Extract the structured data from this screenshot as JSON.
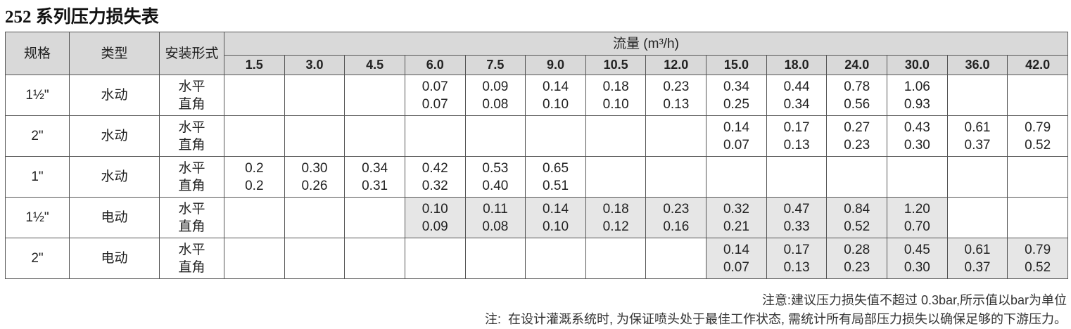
{
  "title": "252 系列压力损失表",
  "table": {
    "headers": {
      "size": "规格",
      "type": "类型",
      "mount": "安装形式",
      "flow": "流量 (m³/h)"
    },
    "flows": [
      "1.5",
      "3.0",
      "4.5",
      "6.0",
      "7.5",
      "9.0",
      "10.5",
      "12.0",
      "15.0",
      "18.0",
      "24.0",
      "30.0",
      "36.0",
      "42.0"
    ],
    "rows": [
      {
        "size": "1½\"",
        "type": "水动",
        "mount": [
          "水平",
          "直角"
        ],
        "shaded": false,
        "values": [
          null,
          null,
          null,
          [
            "0.07",
            "0.07"
          ],
          [
            "0.09",
            "0.08"
          ],
          [
            "0.14",
            "0.10"
          ],
          [
            "0.18",
            "0.10"
          ],
          [
            "0.23",
            "0.13"
          ],
          [
            "0.34",
            "0.25"
          ],
          [
            "0.44",
            "0.34"
          ],
          [
            "0.78",
            "0.56"
          ],
          [
            "1.06",
            "0.93"
          ],
          null,
          null
        ]
      },
      {
        "size": "2\"",
        "type": "水动",
        "mount": [
          "水平",
          "直角"
        ],
        "shaded": false,
        "values": [
          null,
          null,
          null,
          null,
          null,
          null,
          null,
          null,
          [
            "0.14",
            "0.07"
          ],
          [
            "0.17",
            "0.13"
          ],
          [
            "0.27",
            "0.23"
          ],
          [
            "0.43",
            "0.30"
          ],
          [
            "0.61",
            "0.37"
          ],
          [
            "0.79",
            "0.52"
          ]
        ]
      },
      {
        "size": "1\"",
        "type": "水动",
        "mount": [
          "水平",
          "直角"
        ],
        "shaded": false,
        "values": [
          [
            "0.2",
            "0.2"
          ],
          [
            "0.30",
            "0.26"
          ],
          [
            "0.34",
            "0.31"
          ],
          [
            "0.42",
            "0.32"
          ],
          [
            "0.53",
            "0.40"
          ],
          [
            "0.65",
            "0.51"
          ],
          null,
          null,
          null,
          null,
          null,
          null,
          null,
          null
        ]
      },
      {
        "size": "1½\"",
        "type": "电动",
        "mount": [
          "水平",
          "直角"
        ],
        "shaded": true,
        "values": [
          null,
          null,
          null,
          [
            "0.10",
            "0.09"
          ],
          [
            "0.11",
            "0.08"
          ],
          [
            "0.14",
            "0.10"
          ],
          [
            "0.18",
            "0.12"
          ],
          [
            "0.23",
            "0.16"
          ],
          [
            "0.32",
            "0.21"
          ],
          [
            "0.47",
            "0.33"
          ],
          [
            "0.84",
            "0.52"
          ],
          [
            "1.20",
            "0.70"
          ],
          null,
          null
        ]
      },
      {
        "size": "2\"",
        "type": "电动",
        "mount": [
          "水平",
          "直角"
        ],
        "shaded": true,
        "values": [
          null,
          null,
          null,
          null,
          null,
          null,
          null,
          null,
          [
            "0.14",
            "0.07"
          ],
          [
            "0.17",
            "0.13"
          ],
          [
            "0.28",
            "0.23"
          ],
          [
            "0.45",
            "0.30"
          ],
          [
            "0.61",
            "0.37"
          ],
          [
            "0.79",
            "0.52"
          ]
        ]
      }
    ]
  },
  "notes": {
    "caution": "注意:建议压力损失值不超过 0.3bar,所示值以bar为单位",
    "note": "注:  在设计灌溉系统时, 为保证喷头处于最佳工作状态, 需统计所有局部压力损失以确保足够的下游压力。"
  }
}
